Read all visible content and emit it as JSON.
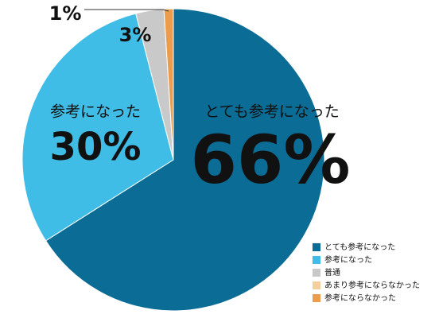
{
  "chart_data": {
    "type": "pie",
    "categories": [
      "とても参考になった",
      "参考になった",
      "普通",
      "あまり参考にならなかった",
      "参考にならなかった"
    ],
    "values": [
      66,
      30,
      3,
      0,
      1
    ],
    "value_labels": [
      "66%",
      "30%",
      "3%",
      null,
      "1%"
    ],
    "colors": [
      "#0b6c95",
      "#3fbde6",
      "#c9c9c9",
      "#f3cf9f",
      "#eb9c4d"
    ],
    "start_angle": 0,
    "direction": "clockwise",
    "legend": "bottom-right"
  }
}
